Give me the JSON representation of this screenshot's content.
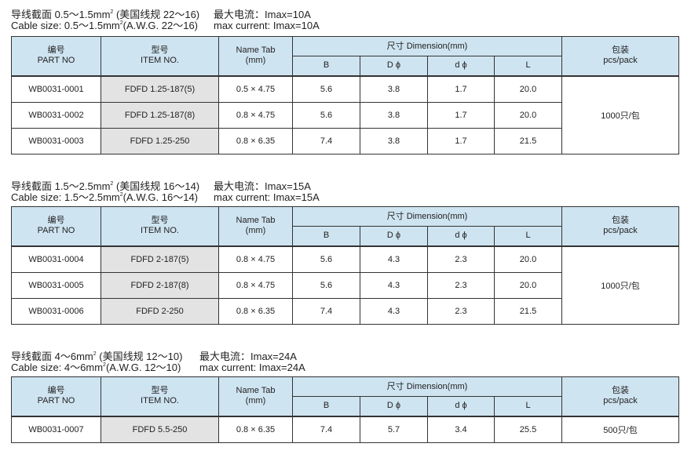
{
  "headers": {
    "part_cn": "编号",
    "part_en": "PART NO",
    "item_cn": "型号",
    "item_en": "ITEM NO.",
    "name_tab_1": "Name Tab",
    "name_tab_2": "(mm)",
    "dimension": "尺寸 Dimension(mm)",
    "col_B": "B",
    "col_D": "D ϕ",
    "col_d": "d ϕ",
    "col_L": "L",
    "pack_cn": "包装",
    "pack_en": "pcs/pack"
  },
  "sections": [
    {
      "caption_cn_pre": "导线截面 0.5～1.5mm",
      "caption_cn_post": " (美国线规 22～16)",
      "caption_en_pre": "Cable size: 0.5～1.5mm",
      "caption_en_post": "(A.W.G. 22～16)",
      "sup": "2",
      "current_cn": "最大电流：Imax=10A",
      "current_en": "max current: Imax=10A",
      "pack": "1000只/包",
      "rows": [
        {
          "part": "WB0031-0001",
          "item": "FDFD 1.25-187(5)",
          "tab": "0.5 × 4.75",
          "B": "5.6",
          "D": "3.8",
          "d": "1.7",
          "L": "20.0"
        },
        {
          "part": "WB0031-0002",
          "item": "FDFD 1.25-187(8)",
          "tab": "0.8 × 4.75",
          "B": "5.6",
          "D": "3.8",
          "d": "1.7",
          "L": "20.0"
        },
        {
          "part": "WB0031-0003",
          "item": "FDFD 1.25-250",
          "tab": "0.8 × 6.35",
          "B": "7.4",
          "D": "3.8",
          "d": "1.7",
          "L": "21.5"
        }
      ]
    },
    {
      "caption_cn_pre": "导线截面 1.5～2.5mm",
      "caption_cn_post": " (美国线规 16～14)",
      "caption_en_pre": "Cable size: 1.5～2.5mm",
      "caption_en_post": "(A.W.G. 16～14)",
      "sup": "2",
      "current_cn": "最大电流：Imax=15A",
      "current_en": "max current: Imax=15A",
      "pack": "1000只/包",
      "rows": [
        {
          "part": "WB0031-0004",
          "item": "FDFD 2-187(5)",
          "tab": "0.8 × 4.75",
          "B": "5.6",
          "D": "4.3",
          "d": "2.3",
          "L": "20.0"
        },
        {
          "part": "WB0031-0005",
          "item": "FDFD 2-187(8)",
          "tab": "0.8 × 4.75",
          "B": "5.6",
          "D": "4.3",
          "d": "2.3",
          "L": "20.0"
        },
        {
          "part": "WB0031-0006",
          "item": "FDFD 2-250",
          "tab": "0.8 × 6.35",
          "B": "7.4",
          "D": "4.3",
          "d": "2.3",
          "L": "21.5"
        }
      ]
    },
    {
      "caption_cn_pre": "导线截面 4～6mm",
      "caption_cn_post": " (美国线规 12～10)",
      "caption_en_pre": "Cable size: 4～6mm",
      "caption_en_post": "(A.W.G. 12～10)",
      "sup": "2",
      "current_cn": "最大电流：Imax=24A",
      "current_en": "max current: Imax=24A",
      "pack": "500只/包",
      "rows": [
        {
          "part": "WB0031-0007",
          "item": "FDFD 5.5-250",
          "tab": "0.8 × 6.35",
          "B": "7.4",
          "D": "5.7",
          "d": "3.4",
          "L": "25.5"
        }
      ]
    }
  ]
}
